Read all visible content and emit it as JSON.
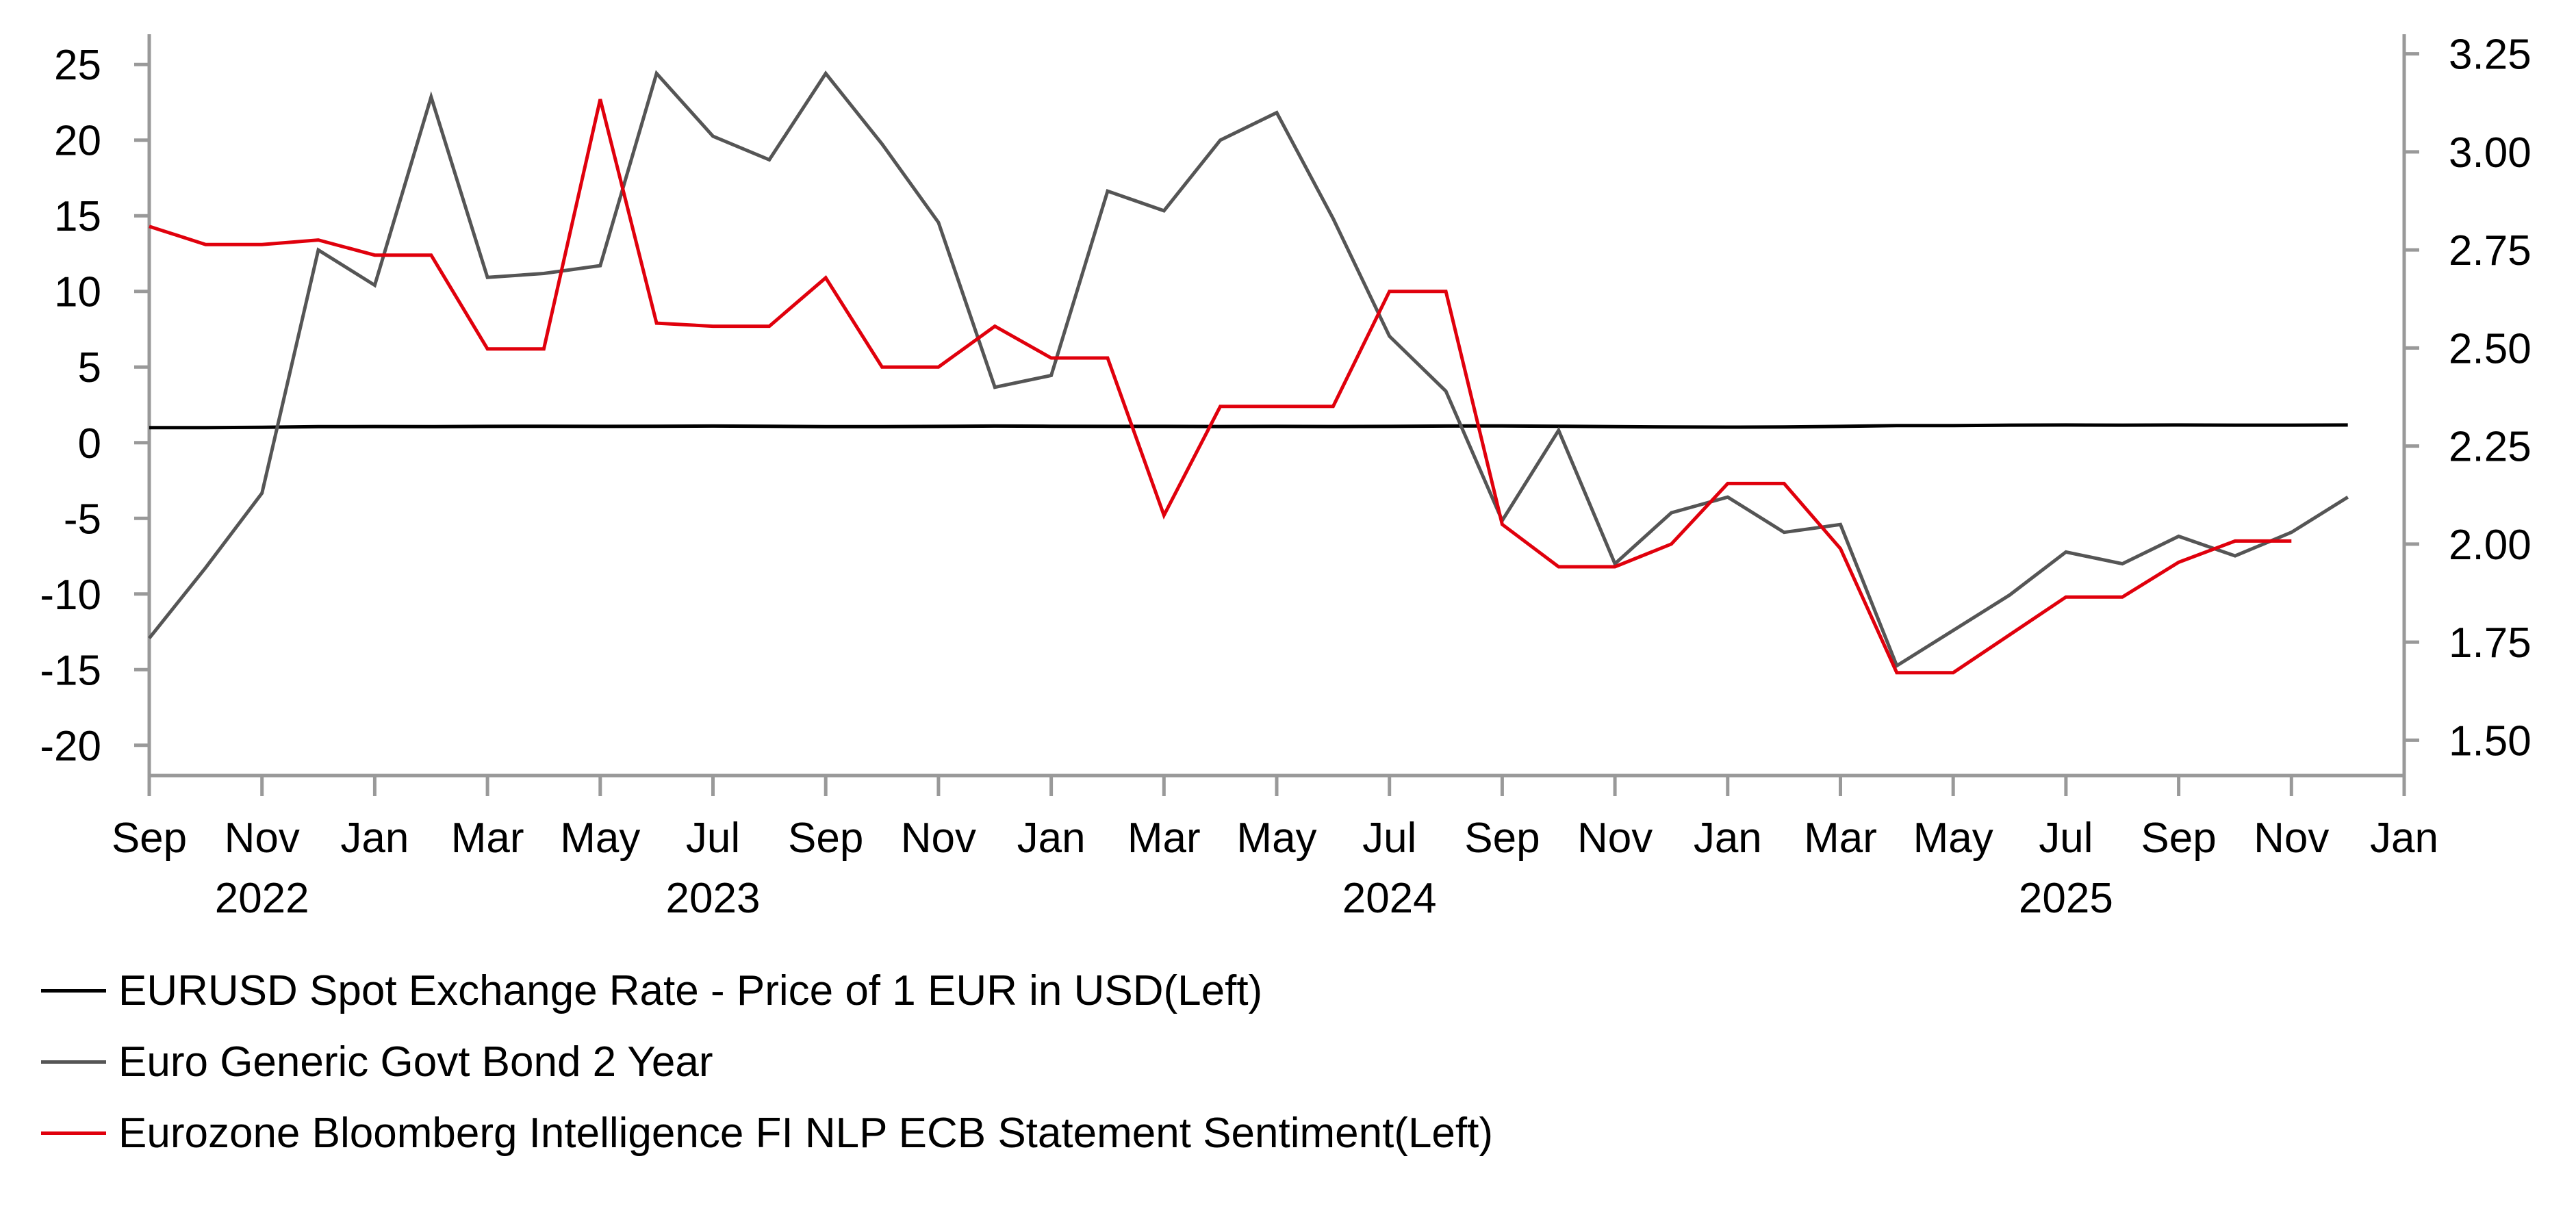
{
  "chart_data": {
    "type": "line",
    "x": [
      "2022-09",
      "2022-10",
      "2022-11",
      "2022-12",
      "2023-01",
      "2023-02",
      "2023-03",
      "2023-04",
      "2023-05",
      "2023-06",
      "2023-07",
      "2023-08",
      "2023-09",
      "2023-10",
      "2023-11",
      "2023-12",
      "2024-01",
      "2024-02",
      "2024-03",
      "2024-04",
      "2024-05",
      "2024-06",
      "2024-07",
      "2024-08",
      "2024-09",
      "2024-10",
      "2024-11",
      "2024-12",
      "2025-01",
      "2025-02",
      "2025-03",
      "2025-04",
      "2025-05",
      "2025-06",
      "2025-07",
      "2025-08",
      "2025-09",
      "2025-10",
      "2025-11",
      "2025-12"
    ],
    "x_tick_labels": [
      {
        "date": "2022-09",
        "label": "Sep"
      },
      {
        "date": "2022-11",
        "label": "Nov"
      },
      {
        "date": "2023-01",
        "label": "Jan"
      },
      {
        "date": "2023-03",
        "label": "Mar"
      },
      {
        "date": "2023-05",
        "label": "May"
      },
      {
        "date": "2023-07",
        "label": "Jul"
      },
      {
        "date": "2023-09",
        "label": "Sep"
      },
      {
        "date": "2023-11",
        "label": "Nov"
      },
      {
        "date": "2024-01",
        "label": "Jan"
      },
      {
        "date": "2024-03",
        "label": "Mar"
      },
      {
        "date": "2024-05",
        "label": "May"
      },
      {
        "date": "2024-07",
        "label": "Jul"
      },
      {
        "date": "2024-09",
        "label": "Sep"
      },
      {
        "date": "2024-11",
        "label": "Nov"
      },
      {
        "date": "2025-01",
        "label": "Jan"
      },
      {
        "date": "2025-03",
        "label": "Mar"
      },
      {
        "date": "2025-05",
        "label": "May"
      },
      {
        "date": "2025-07",
        "label": "Jul"
      },
      {
        "date": "2025-09",
        "label": "Sep"
      },
      {
        "date": "2025-11",
        "label": "Nov"
      },
      {
        "date": "2026-01",
        "label": "Jan"
      }
    ],
    "year_labels": [
      {
        "date": "2022-11",
        "label": "2022"
      },
      {
        "date": "2023-07",
        "label": "2023"
      },
      {
        "date": "2024-07",
        "label": "2024"
      },
      {
        "date": "2025-07",
        "label": "2025"
      }
    ],
    "xlim": [
      "2022-09",
      "2026-01"
    ],
    "ylim_left": [
      -22,
      27
    ],
    "ylim_right": [
      1.41,
      3.3
    ],
    "yticks_left": [
      -20,
      -15,
      -10,
      -5,
      0,
      5,
      10,
      15,
      20,
      25
    ],
    "yticks_right": [
      "1.50",
      "1.75",
      "2.00",
      "2.25",
      "2.50",
      "2.75",
      "3.00",
      "3.25"
    ],
    "grid": false,
    "legend_position": "bottom-left",
    "series": [
      {
        "name": "EURUSD Spot Exchange Rate - Price of 1 EUR in USD(Left)",
        "axis": "left",
        "color": "#000000",
        "values": [
          1.0,
          1.0,
          1.02,
          1.06,
          1.07,
          1.06,
          1.08,
          1.09,
          1.08,
          1.09,
          1.1,
          1.09,
          1.06,
          1.06,
          1.08,
          1.1,
          1.09,
          1.08,
          1.08,
          1.07,
          1.08,
          1.07,
          1.08,
          1.1,
          1.11,
          1.09,
          1.06,
          1.04,
          1.03,
          1.04,
          1.08,
          1.13,
          1.13,
          1.16,
          1.17,
          1.16,
          1.17,
          1.16,
          1.16,
          1.17
        ]
      },
      {
        "name": "Euro Generic Govt Bond 2 Year",
        "axis": "right",
        "color": "#555555",
        "values": [
          1.76,
          1.94,
          2.13,
          2.75,
          2.66,
          3.14,
          2.68,
          2.69,
          2.71,
          3.2,
          3.04,
          2.98,
          3.2,
          3.02,
          2.82,
          2.4,
          2.43,
          2.9,
          2.85,
          3.03,
          3.1,
          2.83,
          2.53,
          2.39,
          2.06,
          2.29,
          1.95,
          2.08,
          2.12,
          2.03,
          2.05,
          1.69,
          1.78,
          1.87,
          1.98,
          1.95,
          2.02,
          1.97,
          2.03,
          2.12
        ]
      },
      {
        "name": "Eurozone Bloomberg Intelligence FI NLP ECB Statement Sentiment(Left)",
        "axis": "left",
        "color": "#e0000c",
        "values": [
          14.3,
          13.1,
          13.1,
          13.4,
          12.4,
          12.4,
          6.2,
          6.2,
          22.7,
          7.9,
          7.7,
          7.7,
          10.9,
          5.0,
          5.0,
          7.7,
          5.6,
          5.6,
          -4.8,
          2.4,
          2.4,
          2.4,
          10.0,
          10.0,
          -5.4,
          -8.2,
          -8.2,
          -6.7,
          -2.7,
          -2.7,
          -7.0,
          -15.2,
          -15.2,
          -12.7,
          -10.2,
          -10.2,
          -7.9,
          -6.5,
          -6.5,
          null
        ]
      }
    ]
  }
}
